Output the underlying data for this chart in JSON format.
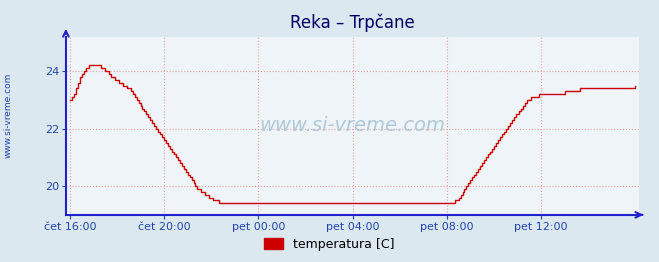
{
  "title": "Reka – Trpčane",
  "watermark": "www.si-vreme.com",
  "legend_label": "temperatura [C]",
  "legend_color": "#cc0000",
  "background_color": "#dce8f0",
  "plot_bg_color": "#eef4f8",
  "grid_color": "#e8a0a0",
  "grid_linestyle": ":",
  "line_color": "#cc0000",
  "axis_color": "#2222cc",
  "title_color": "#000066",
  "tick_color": "#2244aa",
  "watermark_color": "#b0c8d8",
  "side_label_color": "#2244aa",
  "x_tick_labels": [
    "čet 16:00",
    "čet 20:00",
    "pet 00:00",
    "pet 04:00",
    "pet 08:00",
    "pet 12:00"
  ],
  "x_tick_positions": [
    0,
    48,
    96,
    144,
    192,
    240
  ],
  "y_ticks": [
    20,
    22,
    24
  ],
  "ylim": [
    19.0,
    25.2
  ],
  "xlim": [
    -2,
    290
  ],
  "temperature_data": [
    23.0,
    23.1,
    23.2,
    23.4,
    23.6,
    23.8,
    23.9,
    24.0,
    24.1,
    24.1,
    24.2,
    24.2,
    24.2,
    24.2,
    24.2,
    24.2,
    24.1,
    24.1,
    24.0,
    24.0,
    23.9,
    23.8,
    23.8,
    23.7,
    23.7,
    23.6,
    23.6,
    23.5,
    23.5,
    23.4,
    23.4,
    23.3,
    23.2,
    23.1,
    23.0,
    22.9,
    22.8,
    22.7,
    22.6,
    22.5,
    22.4,
    22.3,
    22.2,
    22.1,
    22.0,
    21.9,
    21.8,
    21.7,
    21.6,
    21.5,
    21.4,
    21.3,
    21.2,
    21.1,
    21.0,
    20.9,
    20.8,
    20.7,
    20.6,
    20.5,
    20.4,
    20.3,
    20.2,
    20.1,
    20.0,
    19.9,
    19.9,
    19.8,
    19.8,
    19.7,
    19.7,
    19.6,
    19.6,
    19.5,
    19.5,
    19.5,
    19.4,
    19.4,
    19.4,
    19.4,
    19.4,
    19.4,
    19.4,
    19.4,
    19.4,
    19.4,
    19.4,
    19.4,
    19.4,
    19.4,
    19.4,
    19.4,
    19.4,
    19.4,
    19.4,
    19.4,
    19.4,
    19.4,
    19.4,
    19.4,
    19.4,
    19.4,
    19.4,
    19.4,
    19.4,
    19.4,
    19.4,
    19.4,
    19.4,
    19.4,
    19.4,
    19.4,
    19.4,
    19.4,
    19.4,
    19.4,
    19.4,
    19.4,
    19.4,
    19.4,
    19.4,
    19.4,
    19.4,
    19.4,
    19.4,
    19.4,
    19.4,
    19.4,
    19.4,
    19.4,
    19.4,
    19.4,
    19.4,
    19.4,
    19.4,
    19.4,
    19.4,
    19.4,
    19.4,
    19.4,
    19.4,
    19.4,
    19.4,
    19.4,
    19.4,
    19.4,
    19.4,
    19.4,
    19.4,
    19.4,
    19.4,
    19.4,
    19.4,
    19.4,
    19.4,
    19.4,
    19.4,
    19.4,
    19.4,
    19.4,
    19.4,
    19.4,
    19.4,
    19.4,
    19.4,
    19.4,
    19.4,
    19.4,
    19.4,
    19.4,
    19.4,
    19.4,
    19.4,
    19.4,
    19.4,
    19.4,
    19.4,
    19.4,
    19.4,
    19.4,
    19.4,
    19.4,
    19.4,
    19.4,
    19.4,
    19.4,
    19.4,
    19.4,
    19.4,
    19.4,
    19.4,
    19.4,
    19.4,
    19.4,
    19.4,
    19.4,
    19.5,
    19.5,
    19.6,
    19.7,
    19.8,
    19.9,
    20.0,
    20.1,
    20.2,
    20.3,
    20.4,
    20.5,
    20.6,
    20.7,
    20.8,
    20.9,
    21.0,
    21.1,
    21.2,
    21.3,
    21.4,
    21.5,
    21.6,
    21.7,
    21.8,
    21.9,
    22.0,
    22.1,
    22.2,
    22.3,
    22.4,
    22.5,
    22.5,
    22.6,
    22.7,
    22.8,
    22.9,
    23.0,
    23.0,
    23.1,
    23.1,
    23.1,
    23.1,
    23.2,
    23.2,
    23.2,
    23.2,
    23.2,
    23.2,
    23.2,
    23.2,
    23.2,
    23.2,
    23.2,
    23.2,
    23.2,
    23.3,
    23.3,
    23.3,
    23.3,
    23.3,
    23.3,
    23.3,
    23.3,
    23.4,
    23.4,
    23.4,
    23.4,
    23.4,
    23.4,
    23.4,
    23.4,
    23.4,
    23.4,
    23.4,
    23.4,
    23.4,
    23.4,
    23.4,
    23.4,
    23.4,
    23.4,
    23.4,
    23.4,
    23.4,
    23.4,
    23.4,
    23.4,
    23.4,
    23.4,
    23.4,
    23.4,
    23.5
  ]
}
